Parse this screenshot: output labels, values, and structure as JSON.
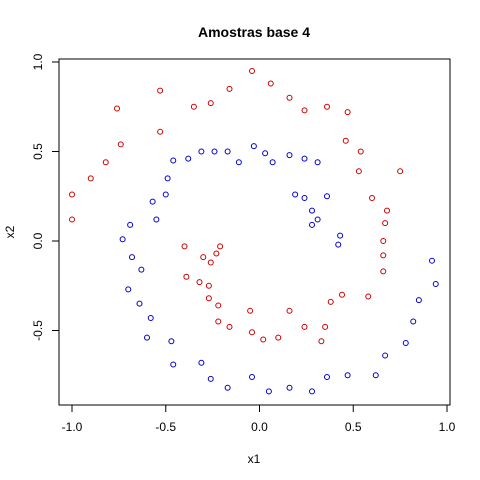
{
  "chart_data": {
    "type": "scatter",
    "title": "Amostras base 4",
    "xlabel": "x1",
    "ylabel": "x2",
    "xlim": [
      -1.0,
      1.0
    ],
    "ylim": [
      -0.85,
      1.0
    ],
    "x_ticks": [
      -1.0,
      -0.5,
      0.0,
      0.5,
      1.0
    ],
    "x_tick_labels": [
      "-1.0",
      "-0.5",
      "0.0",
      "0.5",
      "1.0"
    ],
    "y_ticks": [
      -0.5,
      0.0,
      0.5,
      1.0
    ],
    "y_tick_labels": [
      "-0.5",
      "0.0",
      "0.5",
      "1.0"
    ],
    "grid": false,
    "marker": "open-circle",
    "series": [
      {
        "color": "#cc0000",
        "points": [
          [
            -1.0,
            0.26
          ],
          [
            -1.0,
            0.12
          ],
          [
            -0.9,
            0.35
          ],
          [
            -0.82,
            0.44
          ],
          [
            -0.76,
            0.74
          ],
          [
            -0.74,
            0.54
          ],
          [
            -0.53,
            0.84
          ],
          [
            -0.53,
            0.61
          ],
          [
            -0.35,
            0.75
          ],
          [
            -0.26,
            0.77
          ],
          [
            -0.16,
            0.85
          ],
          [
            -0.04,
            0.95
          ],
          [
            0.06,
            0.88
          ],
          [
            0.16,
            0.8
          ],
          [
            0.24,
            0.73
          ],
          [
            0.36,
            0.75
          ],
          [
            0.47,
            0.72
          ],
          [
            0.46,
            0.56
          ],
          [
            0.54,
            0.5
          ],
          [
            0.53,
            0.39
          ],
          [
            0.6,
            0.24
          ],
          [
            0.75,
            0.39
          ],
          [
            0.68,
            0.17
          ],
          [
            0.67,
            0.1
          ],
          [
            0.66,
            0.0
          ],
          [
            0.66,
            -0.08
          ],
          [
            0.66,
            -0.17
          ],
          [
            0.58,
            -0.31
          ],
          [
            0.44,
            -0.3
          ],
          [
            0.38,
            -0.34
          ],
          [
            0.35,
            -0.48
          ],
          [
            0.33,
            -0.56
          ],
          [
            0.24,
            -0.48
          ],
          [
            0.16,
            -0.39
          ],
          [
            0.1,
            -0.54
          ],
          [
            0.02,
            -0.55
          ],
          [
            -0.04,
            -0.51
          ],
          [
            -0.05,
            -0.39
          ],
          [
            -0.16,
            -0.48
          ],
          [
            -0.22,
            -0.45
          ],
          [
            -0.22,
            -0.36
          ],
          [
            -0.27,
            -0.32
          ],
          [
            -0.27,
            -0.25
          ],
          [
            -0.32,
            -0.23
          ],
          [
            -0.39,
            -0.2
          ],
          [
            -0.4,
            -0.03
          ],
          [
            -0.3,
            -0.09
          ],
          [
            -0.26,
            -0.12
          ],
          [
            -0.23,
            -0.07
          ],
          [
            -0.21,
            -0.03
          ]
        ]
      },
      {
        "color": "#0000cc",
        "points": [
          [
            -0.46,
            0.45
          ],
          [
            -0.38,
            0.46
          ],
          [
            -0.31,
            0.5
          ],
          [
            -0.24,
            0.5
          ],
          [
            -0.17,
            0.5
          ],
          [
            -0.11,
            0.44
          ],
          [
            -0.03,
            0.53
          ],
          [
            0.03,
            0.49
          ],
          [
            0.07,
            0.44
          ],
          [
            0.16,
            0.48
          ],
          [
            0.24,
            0.46
          ],
          [
            0.31,
            0.44
          ],
          [
            0.19,
            0.26
          ],
          [
            0.24,
            0.24
          ],
          [
            0.36,
            0.25
          ],
          [
            0.28,
            0.17
          ],
          [
            0.31,
            0.12
          ],
          [
            0.28,
            0.09
          ],
          [
            0.43,
            0.03
          ],
          [
            0.42,
            -0.02
          ],
          [
            -0.49,
            0.35
          ],
          [
            -0.5,
            0.26
          ],
          [
            -0.57,
            0.22
          ],
          [
            -0.55,
            0.12
          ],
          [
            -0.69,
            0.09
          ],
          [
            -0.73,
            0.01
          ],
          [
            -0.68,
            -0.09
          ],
          [
            -0.63,
            -0.16
          ],
          [
            -0.7,
            -0.27
          ],
          [
            -0.64,
            -0.35
          ],
          [
            -0.58,
            -0.43
          ],
          [
            -0.6,
            -0.54
          ],
          [
            -0.47,
            -0.56
          ],
          [
            -0.46,
            -0.69
          ],
          [
            -0.31,
            -0.68
          ],
          [
            -0.26,
            -0.77
          ],
          [
            -0.17,
            -0.82
          ],
          [
            -0.04,
            -0.76
          ],
          [
            0.05,
            -0.84
          ],
          [
            0.16,
            -0.82
          ],
          [
            0.28,
            -0.84
          ],
          [
            0.36,
            -0.76
          ],
          [
            0.47,
            -0.75
          ],
          [
            0.62,
            -0.75
          ],
          [
            0.67,
            -0.64
          ],
          [
            0.78,
            -0.57
          ],
          [
            0.82,
            -0.45
          ],
          [
            0.85,
            -0.33
          ],
          [
            0.92,
            -0.11
          ],
          [
            0.94,
            -0.24
          ]
        ]
      }
    ]
  }
}
